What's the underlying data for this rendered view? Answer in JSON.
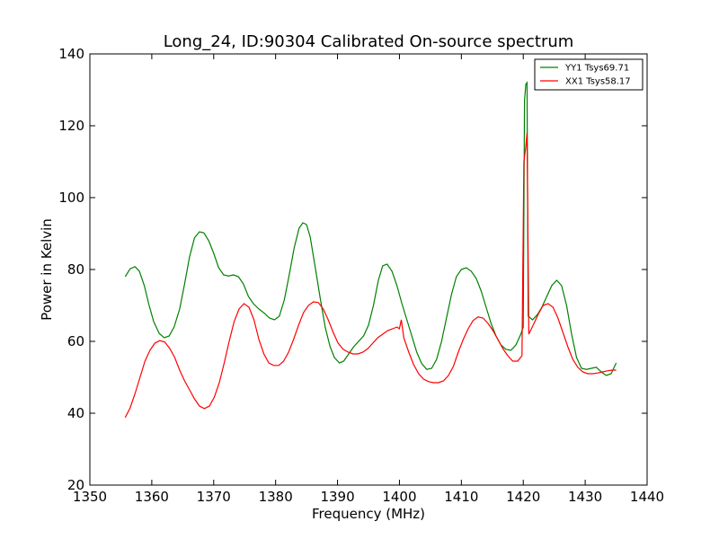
{
  "chart_data": {
    "type": "line",
    "title": "Long_24, ID:90304 Calibrated On-source spectrum",
    "xlabel": "Frequency (MHz)",
    "ylabel": "Power in Kelvin",
    "xlim": [
      1350,
      1440
    ],
    "ylim": [
      20,
      140
    ],
    "xticks": [
      1350,
      1360,
      1370,
      1380,
      1390,
      1400,
      1410,
      1420,
      1430,
      1440
    ],
    "yticks": [
      20,
      40,
      60,
      80,
      100,
      120,
      140
    ],
    "grid": false,
    "legend_position": "top-right",
    "series": [
      {
        "name": "YY1 Tsys69.71",
        "color": "#008000",
        "points": [
          [
            1355.7,
            78.0
          ],
          [
            1356.5,
            80.2
          ],
          [
            1357.3,
            80.8
          ],
          [
            1358.0,
            79.5
          ],
          [
            1358.8,
            75.5
          ],
          [
            1359.5,
            70.5
          ],
          [
            1360.3,
            65.5
          ],
          [
            1361.2,
            62.2
          ],
          [
            1362.0,
            61.0
          ],
          [
            1362.8,
            61.5
          ],
          [
            1363.6,
            64.0
          ],
          [
            1364.5,
            69.0
          ],
          [
            1365.3,
            76.0
          ],
          [
            1366.1,
            83.5
          ],
          [
            1366.9,
            88.8
          ],
          [
            1367.7,
            90.5
          ],
          [
            1368.4,
            90.2
          ],
          [
            1369.2,
            88.0
          ],
          [
            1370.0,
            84.5
          ],
          [
            1370.8,
            80.5
          ],
          [
            1371.6,
            78.5
          ],
          [
            1372.4,
            78.2
          ],
          [
            1373.2,
            78.5
          ],
          [
            1374.0,
            78.0
          ],
          [
            1374.8,
            76.0
          ],
          [
            1375.6,
            72.5
          ],
          [
            1376.4,
            70.5
          ],
          [
            1377.3,
            69.0
          ],
          [
            1378.2,
            67.8
          ],
          [
            1379.0,
            66.5
          ],
          [
            1379.8,
            66.0
          ],
          [
            1380.6,
            67.0
          ],
          [
            1381.4,
            71.5
          ],
          [
            1382.2,
            78.5
          ],
          [
            1383.0,
            86.0
          ],
          [
            1383.8,
            91.5
          ],
          [
            1384.4,
            93.0
          ],
          [
            1385.0,
            92.5
          ],
          [
            1385.6,
            89.0
          ],
          [
            1386.4,
            80.5
          ],
          [
            1387.2,
            72.0
          ],
          [
            1388.0,
            64.0
          ],
          [
            1388.8,
            58.5
          ],
          [
            1389.5,
            55.5
          ],
          [
            1390.3,
            54.0
          ],
          [
            1391.0,
            54.5
          ],
          [
            1391.8,
            56.5
          ],
          [
            1392.6,
            58.5
          ],
          [
            1393.4,
            60.0
          ],
          [
            1394.2,
            61.5
          ],
          [
            1395.0,
            64.5
          ],
          [
            1395.8,
            70.0
          ],
          [
            1396.6,
            77.0
          ],
          [
            1397.3,
            81.0
          ],
          [
            1398.0,
            81.5
          ],
          [
            1398.8,
            79.5
          ],
          [
            1399.6,
            75.5
          ],
          [
            1400.4,
            70.5
          ],
          [
            1401.2,
            66.0
          ],
          [
            1402.0,
            61.5
          ],
          [
            1402.8,
            57.0
          ],
          [
            1403.6,
            53.8
          ],
          [
            1404.4,
            52.2
          ],
          [
            1405.2,
            52.5
          ],
          [
            1406.0,
            55.0
          ],
          [
            1406.8,
            60.0
          ],
          [
            1407.6,
            66.5
          ],
          [
            1408.4,
            73.0
          ],
          [
            1409.2,
            78.0
          ],
          [
            1410.0,
            80.0
          ],
          [
            1410.8,
            80.5
          ],
          [
            1411.6,
            79.5
          ],
          [
            1412.4,
            77.5
          ],
          [
            1413.2,
            74.0
          ],
          [
            1414.0,
            69.5
          ],
          [
            1414.8,
            65.0
          ],
          [
            1415.6,
            61.5
          ],
          [
            1416.4,
            59.0
          ],
          [
            1417.2,
            57.8
          ],
          [
            1418.0,
            57.5
          ],
          [
            1418.8,
            59.0
          ],
          [
            1419.6,
            62.0
          ],
          [
            1420.0,
            64.0
          ],
          [
            1420.2,
            127.0
          ],
          [
            1420.4,
            131.5
          ],
          [
            1420.6,
            132.0
          ],
          [
            1420.8,
            67.0
          ],
          [
            1421.5,
            66.0
          ],
          [
            1422.3,
            67.5
          ],
          [
            1423.0,
            69.5
          ],
          [
            1423.8,
            72.5
          ],
          [
            1424.6,
            75.5
          ],
          [
            1425.4,
            77.0
          ],
          [
            1426.2,
            75.5
          ],
          [
            1427.0,
            70.0
          ],
          [
            1427.8,
            62.0
          ],
          [
            1428.6,
            55.5
          ],
          [
            1429.4,
            52.5
          ],
          [
            1430.2,
            52.2
          ],
          [
            1431.0,
            52.5
          ],
          [
            1431.8,
            52.8
          ],
          [
            1432.6,
            51.5
          ],
          [
            1433.4,
            50.5
          ],
          [
            1434.2,
            51.0
          ],
          [
            1435.0,
            54.0
          ]
        ]
      },
      {
        "name": "XX1 Tsys58.17",
        "color": "#ff0000",
        "points": [
          [
            1355.7,
            38.8
          ],
          [
            1356.5,
            41.5
          ],
          [
            1357.3,
            45.5
          ],
          [
            1358.1,
            50.0
          ],
          [
            1358.9,
            54.5
          ],
          [
            1359.7,
            57.5
          ],
          [
            1360.5,
            59.5
          ],
          [
            1361.3,
            60.2
          ],
          [
            1362.1,
            59.8
          ],
          [
            1362.9,
            58.0
          ],
          [
            1363.7,
            55.5
          ],
          [
            1364.5,
            52.0
          ],
          [
            1365.3,
            49.0
          ],
          [
            1366.1,
            46.5
          ],
          [
            1366.9,
            44.0
          ],
          [
            1367.7,
            42.0
          ],
          [
            1368.5,
            41.3
          ],
          [
            1369.3,
            42.0
          ],
          [
            1370.1,
            44.5
          ],
          [
            1370.9,
            48.5
          ],
          [
            1371.7,
            54.0
          ],
          [
            1372.5,
            60.0
          ],
          [
            1373.3,
            65.5
          ],
          [
            1374.1,
            69.0
          ],
          [
            1374.9,
            70.5
          ],
          [
            1375.7,
            69.5
          ],
          [
            1376.5,
            66.0
          ],
          [
            1377.3,
            60.5
          ],
          [
            1378.1,
            56.5
          ],
          [
            1378.9,
            54.0
          ],
          [
            1379.7,
            53.3
          ],
          [
            1380.5,
            53.3
          ],
          [
            1381.3,
            54.5
          ],
          [
            1382.1,
            57.0
          ],
          [
            1382.9,
            60.5
          ],
          [
            1383.7,
            64.5
          ],
          [
            1384.5,
            68.0
          ],
          [
            1385.3,
            70.0
          ],
          [
            1386.1,
            71.0
          ],
          [
            1386.9,
            70.8
          ],
          [
            1387.7,
            69.0
          ],
          [
            1388.5,
            66.0
          ],
          [
            1389.3,
            62.5
          ],
          [
            1390.1,
            59.5
          ],
          [
            1390.9,
            57.8
          ],
          [
            1391.7,
            57.0
          ],
          [
            1392.5,
            56.5
          ],
          [
            1393.3,
            56.5
          ],
          [
            1394.1,
            57.0
          ],
          [
            1394.9,
            58.0
          ],
          [
            1395.7,
            59.5
          ],
          [
            1396.5,
            61.0
          ],
          [
            1397.3,
            62.0
          ],
          [
            1398.1,
            63.0
          ],
          [
            1398.9,
            63.5
          ],
          [
            1399.6,
            64.0
          ],
          [
            1400.0,
            63.5
          ],
          [
            1400.3,
            66.0
          ],
          [
            1400.7,
            61.0
          ],
          [
            1401.5,
            57.0
          ],
          [
            1402.3,
            53.5
          ],
          [
            1403.1,
            51.0
          ],
          [
            1403.9,
            49.5
          ],
          [
            1404.7,
            48.8
          ],
          [
            1405.5,
            48.5
          ],
          [
            1406.3,
            48.5
          ],
          [
            1407.1,
            49.0
          ],
          [
            1407.9,
            50.5
          ],
          [
            1408.7,
            53.0
          ],
          [
            1409.5,
            57.0
          ],
          [
            1410.3,
            60.5
          ],
          [
            1411.1,
            63.5
          ],
          [
            1411.9,
            65.8
          ],
          [
            1412.7,
            66.8
          ],
          [
            1413.5,
            66.5
          ],
          [
            1414.3,
            65.0
          ],
          [
            1415.1,
            63.0
          ],
          [
            1415.9,
            60.5
          ],
          [
            1416.7,
            58.0
          ],
          [
            1417.5,
            56.0
          ],
          [
            1418.3,
            54.5
          ],
          [
            1419.1,
            54.5
          ],
          [
            1419.8,
            56.0
          ],
          [
            1420.1,
            110.0
          ],
          [
            1420.4,
            114.0
          ],
          [
            1420.6,
            118.0
          ],
          [
            1420.9,
            62.0
          ],
          [
            1421.6,
            64.5
          ],
          [
            1422.4,
            67.5
          ],
          [
            1423.2,
            70.0
          ],
          [
            1424.0,
            70.5
          ],
          [
            1424.8,
            69.5
          ],
          [
            1425.6,
            66.5
          ],
          [
            1426.4,
            62.5
          ],
          [
            1427.2,
            58.5
          ],
          [
            1428.0,
            55.0
          ],
          [
            1428.8,
            52.8
          ],
          [
            1429.6,
            51.5
          ],
          [
            1430.4,
            51.0
          ],
          [
            1431.2,
            51.0
          ],
          [
            1432.0,
            51.2
          ],
          [
            1432.8,
            51.5
          ],
          [
            1433.6,
            51.8
          ],
          [
            1434.4,
            52.0
          ],
          [
            1435.0,
            52.0
          ]
        ]
      }
    ]
  }
}
